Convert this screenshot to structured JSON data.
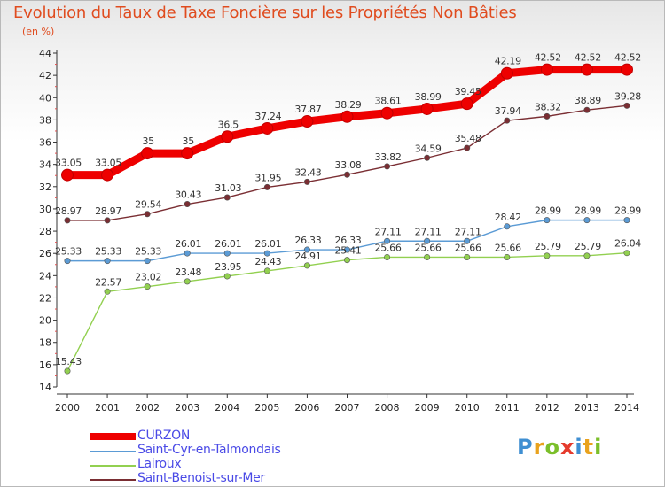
{
  "title": "Evolution du Taux de Taxe Foncière sur les Propriétés Non Bâties",
  "unit_label": "(en %)",
  "logo": {
    "letters": [
      "P",
      "r",
      "o",
      "x",
      "i",
      "t",
      "i"
    ],
    "colors": [
      "#3f8fd2",
      "#e9a21d",
      "#7bbf2a",
      "#e53b2d",
      "#3f8fd2",
      "#e9a21d",
      "#7bbf2a"
    ]
  },
  "chart_data": {
    "type": "line",
    "title": "Evolution du Taux de Taxe Foncière sur les Propriétés Non Bâties",
    "ylabel": "(en %)",
    "xlabel": "",
    "ylim": [
      14,
      44
    ],
    "yticks": [
      14,
      16,
      18,
      20,
      22,
      24,
      26,
      28,
      30,
      32,
      34,
      36,
      38,
      40,
      42,
      44
    ],
    "grid": false,
    "legend": "bottom-left",
    "categories": [
      "2000",
      "2001",
      "2002",
      "2003",
      "2004",
      "2005",
      "2006",
      "2007",
      "2008",
      "2009",
      "2010",
      "2011",
      "2012",
      "2013",
      "2014"
    ],
    "series": [
      {
        "name": "CURZON",
        "color": "#ee0000",
        "emphasis": "bold",
        "values": [
          33.05,
          33.05,
          35,
          35,
          36.5,
          37.24,
          37.87,
          38.29,
          38.61,
          38.99,
          39.45,
          42.19,
          42.52,
          42.52,
          42.52
        ],
        "labels": [
          "33.05",
          "33.05",
          "35",
          "35",
          "36.5",
          "37.24",
          "37.87",
          "38.29",
          "38.61",
          "38.99",
          "39.45",
          "42.19",
          "42.52",
          "42.52",
          "42.52"
        ]
      },
      {
        "name": "Saint-Cyr-en-Talmondais",
        "color": "#5b9bd5",
        "emphasis": "normal",
        "values": [
          25.33,
          25.33,
          25.33,
          26.01,
          26.01,
          26.01,
          26.33,
          26.33,
          27.11,
          27.11,
          27.11,
          28.42,
          28.99,
          28.99,
          28.99
        ],
        "labels": [
          "25.33",
          "25.33",
          "25.33",
          "26.01",
          "26.01",
          "26.01",
          "26.33",
          "26.33",
          "27.11",
          "27.11",
          "27.11",
          "28.42",
          "28.99",
          "28.99",
          "28.99"
        ]
      },
      {
        "name": "Lairoux",
        "color": "#92d050",
        "emphasis": "normal",
        "values": [
          15.43,
          22.57,
          23.02,
          23.48,
          23.95,
          24.43,
          24.91,
          25.41,
          25.66,
          25.66,
          25.66,
          25.66,
          25.79,
          25.79,
          26.04
        ],
        "labels": [
          "15.43",
          "22.57",
          "23.02",
          "23.48",
          "23.95",
          "24.43",
          "24.91",
          "25.41",
          "25.66",
          "25.66",
          "25.66",
          "25.66",
          "25.79",
          "25.79",
          "26.04"
        ]
      },
      {
        "name": "Saint-Benoist-sur-Mer",
        "color": "#7a2e33",
        "emphasis": "normal",
        "values": [
          28.97,
          28.97,
          29.54,
          30.43,
          31.03,
          31.95,
          32.43,
          33.08,
          33.82,
          34.59,
          35.48,
          37.94,
          38.32,
          38.89,
          39.28
        ],
        "labels": [
          "28.97",
          "28.97",
          "29.54",
          "30.43",
          "31.03",
          "31.95",
          "32.43",
          "33.08",
          "33.82",
          "34.59",
          "35.48",
          "37.94",
          "38.32",
          "38.89",
          "39.28"
        ]
      }
    ]
  }
}
